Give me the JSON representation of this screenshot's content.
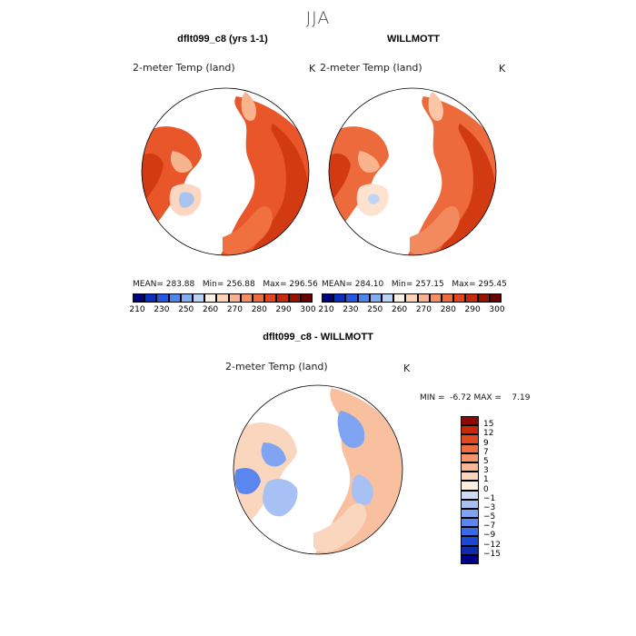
{
  "page_title": "JJA",
  "panels": {
    "model": {
      "heading": "dflt099_c8 (yrs 1-1)",
      "var_label": "2-meter Temp (land)",
      "units": "K",
      "stats": {
        "mean_label": "MEAN=",
        "mean": "283.88",
        "min_label": "Min=",
        "min": "256.88",
        "max_label": "Max=",
        "max": "296.56"
      }
    },
    "obs": {
      "heading": "WILLMOTT",
      "var_label": "2-meter Temp (land)",
      "units": "K",
      "stats": {
        "mean_label": "MEAN=",
        "mean": "284.10",
        "min_label": "Min=",
        "min": "257.15",
        "max_label": "Max=",
        "max": "295.45"
      }
    },
    "diff": {
      "heading": "dflt099_c8 - WILLMOTT",
      "var_label": "2-meter Temp (land)",
      "units": "K",
      "stats": {
        "min_label": "MIN =",
        "min": "-6.72",
        "max_label": "MAX =",
        "max": "7.19"
      }
    }
  },
  "colorbar_abs": {
    "colors": [
      "#000080",
      "#0b2fb5",
      "#1f57e0",
      "#4c85ef",
      "#83acf1",
      "#bcd3f6",
      "#fdf0e4",
      "#fcd4b8",
      "#fbb38e",
      "#f88d62",
      "#f06a3e",
      "#e3461e",
      "#c62c0b",
      "#971200",
      "#640000"
    ],
    "tick_labels": [
      "210",
      "230",
      "250",
      "260",
      "270",
      "280",
      "290",
      "300"
    ]
  },
  "colorbar_diff": {
    "colors": [
      "#00008a",
      "#0f2cb0",
      "#1d48d4",
      "#3a69e8",
      "#5a87ef",
      "#7fa5f2",
      "#a7c1f5",
      "#cfdcf7",
      "#fdeee3",
      "#fbd6be",
      "#f9b895",
      "#f69569",
      "#ee6e3f",
      "#e14a1e",
      "#c52a08",
      "#8e0800"
    ],
    "tick_labels": [
      "15",
      "12",
      "9",
      "7",
      "5",
      "3",
      "1",
      "0",
      "−1",
      "−3",
      "−5",
      "−7",
      "−9",
      "−12",
      "−15"
    ]
  }
}
